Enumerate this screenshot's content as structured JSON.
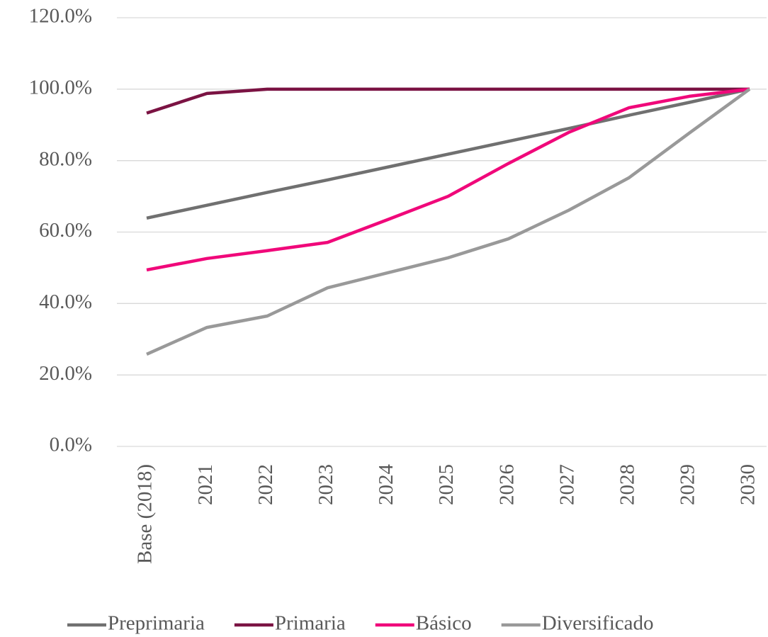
{
  "chart_data": {
    "type": "line",
    "categories": [
      "Base (2018)",
      "2021",
      "2022",
      "2023",
      "2024",
      "2025",
      "2026",
      "2027",
      "2028",
      "2029",
      "2030"
    ],
    "series": [
      {
        "name": "Preprimaria",
        "color": "#707070",
        "values": [
          63.9,
          67.5,
          71.1,
          74.6,
          78.2,
          81.8,
          85.4,
          89.0,
          92.7,
          96.3,
          100
        ]
      },
      {
        "name": "Primaria",
        "color": "#7b1343",
        "values": [
          93.3,
          98.8,
          100,
          100,
          100,
          100,
          100,
          100,
          100,
          100,
          100
        ]
      },
      {
        "name": "Básico",
        "color": "#f0087a",
        "values": [
          49.4,
          52.6,
          54.8,
          57.1,
          63.5,
          70.0,
          79.2,
          87.9,
          94.8,
          98.0,
          100
        ]
      },
      {
        "name": "Diversificado",
        "color": "#999999",
        "values": [
          25.8,
          33.3,
          36.5,
          44.4,
          48.6,
          52.8,
          58.1,
          66.1,
          75.2,
          87.7,
          100
        ]
      }
    ],
    "ylim": [
      0,
      120
    ],
    "yticks": [
      {
        "value": 0,
        "label": "0.0%"
      },
      {
        "value": 20,
        "label": "20.0%"
      },
      {
        "value": 40,
        "label": "40.0%"
      },
      {
        "value": 60,
        "label": "60.0%"
      },
      {
        "value": 80,
        "label": "80.0%"
      },
      {
        "value": 100,
        "label": "100.0%"
      },
      {
        "value": 120,
        "label": "120.0%"
      }
    ],
    "grid": true,
    "legend": "bottom"
  }
}
